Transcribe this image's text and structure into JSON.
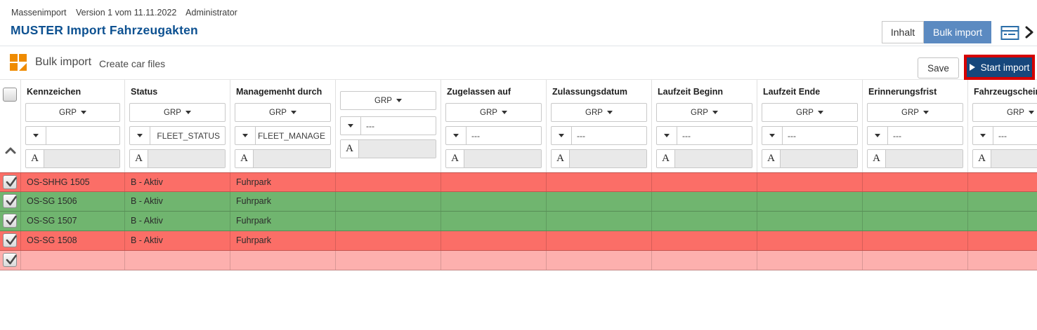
{
  "header": {
    "meta": {
      "app": "Massenimport",
      "version": "Version 1 vom 11.11.2022",
      "user": "Administrator"
    },
    "title": "MUSTER Import Fahrzeugakten",
    "tabs": [
      {
        "label": "Inhalt",
        "active": false
      },
      {
        "label": "Bulk import",
        "active": true
      }
    ],
    "title_color": "#0d5191",
    "active_tab_color": "#5b8ac1"
  },
  "toolbar": {
    "section_title": "Bulk import",
    "create_link": "Create car files",
    "save_label": "Save",
    "start_import_label": "Start import",
    "icon_color": "#ef8b00",
    "start_button_color": "#16477c",
    "annotation_color": "#d60000"
  },
  "table": {
    "group_button_label": "GRP",
    "format_button_label": "A",
    "columns": [
      {
        "label": "Kennzeichen",
        "filter_value": "",
        "filter_align": "left"
      },
      {
        "label": "Status",
        "filter_value": "FLEET_STATUS",
        "filter_align": "right"
      },
      {
        "label": "Managemenht durch",
        "filter_value": "FLEET_MANAGE",
        "filter_align": "right"
      },
      {
        "label": "",
        "filter_value": "---",
        "filter_align": "left"
      },
      {
        "label": "Zugelassen auf",
        "filter_value": "---",
        "filter_align": "left"
      },
      {
        "label": "Zulassungsdatum",
        "filter_value": "---",
        "filter_align": "left"
      },
      {
        "label": "Laufzeit Beginn",
        "filter_value": "---",
        "filter_align": "left"
      },
      {
        "label": "Laufzeit Ende",
        "filter_value": "---",
        "filter_align": "left"
      },
      {
        "label": "Erinnerungsfrist",
        "filter_value": "---",
        "filter_align": "left"
      },
      {
        "label": "Fahrzeugschein",
        "filter_value": "---",
        "filter_align": "left"
      }
    ],
    "status_colors": {
      "error": "#fb6e67",
      "ok": "#70b56f",
      "empty": "#fdb0ae"
    },
    "rows": [
      {
        "checked": true,
        "status": "error",
        "cells": [
          "OS-SHHG 1505",
          "B - Aktiv",
          "Fuhrpark",
          "",
          "",
          "",
          "",
          "",
          "",
          ""
        ]
      },
      {
        "checked": true,
        "status": "ok",
        "cells": [
          "OS-SG 1506",
          "B - Aktiv",
          "Fuhrpark",
          "",
          "",
          "",
          "",
          "",
          "",
          ""
        ]
      },
      {
        "checked": true,
        "status": "ok",
        "cells": [
          "OS-SG 1507",
          "B - Aktiv",
          "Fuhrpark",
          "",
          "",
          "",
          "",
          "",
          "",
          ""
        ]
      },
      {
        "checked": true,
        "status": "error",
        "cells": [
          "OS-SG 1508",
          "B - Aktiv",
          "Fuhrpark",
          "",
          "",
          "",
          "",
          "",
          "",
          ""
        ]
      },
      {
        "checked": true,
        "status": "empty",
        "cells": [
          "",
          "",
          "",
          "",
          "",
          "",
          "",
          "",
          "",
          ""
        ]
      }
    ]
  }
}
